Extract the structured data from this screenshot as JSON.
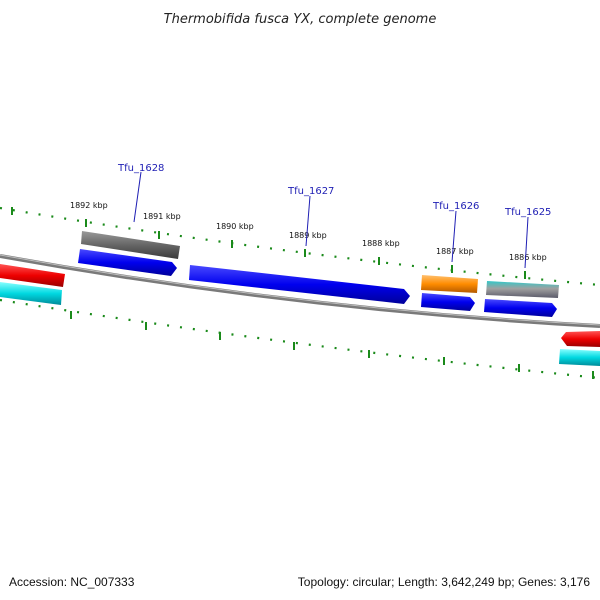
{
  "title": "Thermobifida fusca YX, complete genome",
  "footer": {
    "accession": "Accession: NC_007333",
    "summary": "Topology: circular; Length: 3,642,249 bp; Genes: 3,176"
  },
  "colors": {
    "cds": "#0000ee",
    "gray": "#666666",
    "red": "#ee0000",
    "cyan": "#00d8e0",
    "orange": "#ff8c00",
    "tick": "#1a8a1a",
    "backbone": "#7a7a7a",
    "label": "#1f1fb4"
  },
  "kbp_ticks": [
    "1892 kbp",
    "1891 kbp",
    "1890 kbp",
    "1889 kbp",
    "1888 kbp",
    "1887 kbp",
    "1886 kbp"
  ],
  "genes": [
    {
      "name": "Tfu_1628"
    },
    {
      "name": "Tfu_1627"
    },
    {
      "name": "Tfu_1626"
    },
    {
      "name": "Tfu_1625"
    }
  ]
}
